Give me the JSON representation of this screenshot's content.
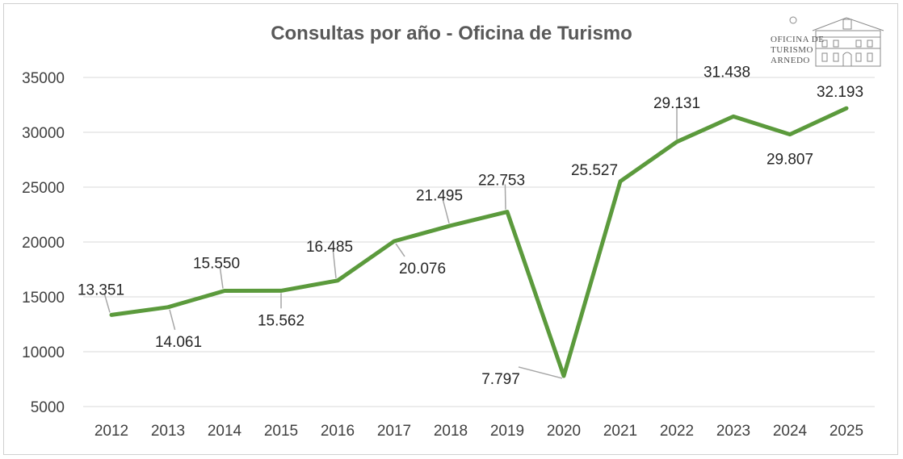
{
  "chart_data": {
    "type": "line",
    "title": "Consultas por año - Oficina de Turismo",
    "xlabel": "",
    "ylabel": "",
    "categories": [
      "2012",
      "2013",
      "2014",
      "2015",
      "2016",
      "2017",
      "2018",
      "2019",
      "2020",
      "2021",
      "2022",
      "2023",
      "2024",
      "2025"
    ],
    "series": [
      {
        "name": "Consultas",
        "values": [
          13351,
          14061,
          15550,
          15562,
          16485,
          20076,
          21495,
          22753,
          7797,
          25527,
          29131,
          31438,
          29807,
          32193
        ],
        "labels": [
          "13.351",
          "14.061",
          "15.550",
          "15.562",
          "16.485",
          "20.076",
          "21.495",
          "22.753",
          "7.797",
          "25.527",
          "29.131",
          "31.438",
          "29.807",
          "32.193"
        ],
        "color": "#5b9a3c"
      }
    ],
    "yticks": [
      "5000",
      "10000",
      "15000",
      "20000",
      "25000",
      "30000",
      "35000"
    ],
    "ylim": [
      5000,
      35000
    ],
    "grid": true,
    "legend": "none"
  },
  "logo": {
    "lines": [
      "OFICINA DE",
      "TURISMO",
      "ARNEDO"
    ]
  }
}
